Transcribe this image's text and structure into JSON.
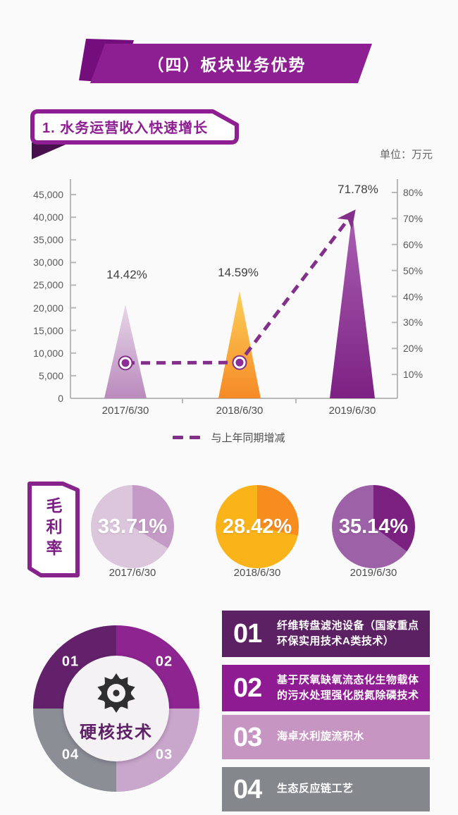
{
  "header": {
    "title": "（四）板块业务优势"
  },
  "section1": {
    "title": "1. 水务运营收入快速增长"
  },
  "page": {
    "unit_label": "单位：万元"
  },
  "chart_data": [
    {
      "type": "bar",
      "subtype": "triangle-bars-with-dashed-growth-line",
      "title": "水务运营收入快速增长",
      "unit": "万元",
      "categories": [
        "2017/6/30",
        "2018/6/30",
        "2019/6/30"
      ],
      "series": [
        {
          "name": "水务运营收入",
          "axis": "left",
          "values": [
            20700,
            23700,
            40800
          ]
        },
        {
          "name": "与上年同期增减",
          "axis": "right",
          "values": [
            14.42,
            14.59,
            71.78
          ]
        }
      ],
      "growth_labels": [
        "14.42%",
        "14.59%",
        "71.78%"
      ],
      "left_axis": {
        "min": 0,
        "max": 45000,
        "step": 5000,
        "tick_labels": [
          "45,000",
          "40,000",
          "35,000",
          "30,000",
          "25,000",
          "20,000",
          "15,000",
          "10,000",
          "5,000",
          "0"
        ],
        "tick_values": [
          45000,
          40000,
          35000,
          30000,
          25000,
          20000,
          15000,
          10000,
          5000,
          0
        ]
      },
      "right_axis": {
        "min": 0,
        "max": 80,
        "step": 10,
        "tick_labels": [
          "80%",
          "70%",
          "60%",
          "50%",
          "40%",
          "30%",
          "20%",
          "10%"
        ],
        "tick_values": [
          80,
          70,
          60,
          50,
          40,
          30,
          20,
          10
        ]
      },
      "legend": "与上年同期增减",
      "bar_colors": [
        [
          "#e8d7e9",
          "#b98abc"
        ],
        [
          "#fcd05a",
          "#f68a26"
        ],
        [
          "#aa60b2",
          "#7c2183"
        ]
      ],
      "line_color": "#83308b",
      "grid": false,
      "legend_position": "bottom"
    },
    {
      "type": "pie",
      "title": "毛利率",
      "categories": [
        "2017/6/30",
        "2018/6/30",
        "2019/6/30"
      ],
      "values": [
        33.71,
        28.42,
        35.14
      ],
      "labels": [
        "33.71%",
        "28.42%",
        "35.14%"
      ],
      "colors": [
        [
          "#c49bc6",
          "#dbc6dc"
        ],
        [
          "#f78d1e",
          "#fbb31a"
        ],
        [
          "#7b2180",
          "#9c61a6"
        ]
      ]
    }
  ],
  "margin_section": {
    "label": "毛利率",
    "pies": [
      {
        "value": "33.71%",
        "date": "2017/6/30"
      },
      {
        "value": "28.42%",
        "date": "2018/6/30"
      },
      {
        "value": "35.14%",
        "date": "2019/6/30"
      }
    ]
  },
  "tech_section": {
    "center_label": "硬核技术",
    "wheel": [
      "01",
      "02",
      "03",
      "04"
    ],
    "items": [
      {
        "num": "01",
        "text": "纤维转盘滤池设备（国家重点环保实用技术A类技术）",
        "color": "#5b2163"
      },
      {
        "num": "02",
        "text": "基于厌氧缺氧流态化生物载体的污水处理强化脱氮除磷技术",
        "color": "#8f1b92"
      },
      {
        "num": "03",
        "text": "海卓水利旋流积水",
        "color": "#c795c1"
      },
      {
        "num": "04",
        "text": "生态反应链工艺",
        "color": "#84878c"
      }
    ]
  },
  "colors": {
    "brand_purple": "#8e1f93",
    "banner_back": "#750e7d",
    "fold_dark": "#47104d",
    "wheel_quadrants": [
      "#64216b",
      "#8d2490",
      "#c9a6cb",
      "#8b8e95"
    ]
  }
}
